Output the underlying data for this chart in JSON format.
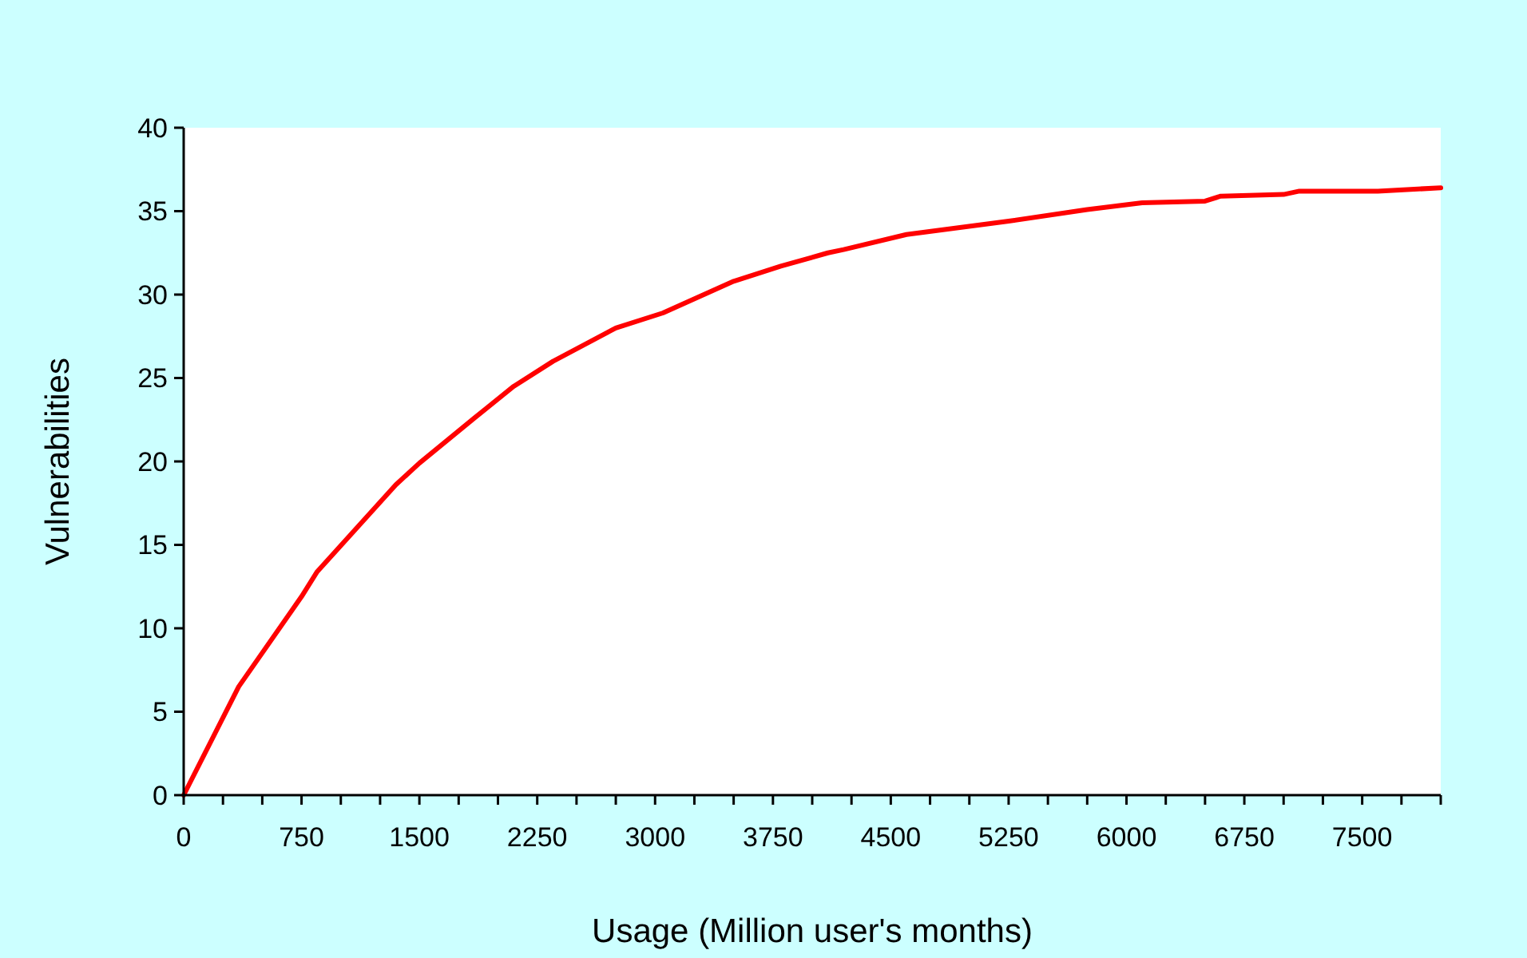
{
  "chart_data": {
    "type": "line",
    "xlabel": "Usage (Million user's months)",
    "ylabel": "Vulnerabilities",
    "x": [
      0,
      350,
      750,
      850,
      1350,
      1500,
      1850,
      2100,
      2350,
      2750,
      3050,
      3500,
      3800,
      4100,
      4200,
      4600,
      5250,
      5750,
      6100,
      6500,
      6600,
      7000,
      7100,
      7600,
      8000
    ],
    "series": [
      {
        "color": "#ff0000",
        "values": [
          0,
          6.5,
          11.9,
          13.4,
          18.6,
          19.9,
          22.6,
          24.5,
          26,
          28,
          28.9,
          30.8,
          31.7,
          32.5,
          32.7,
          33.6,
          34.4,
          35.1,
          35.5,
          35.6,
          35.9,
          36,
          36.2,
          36.2,
          36.4
        ]
      }
    ],
    "xlim": [
      0,
      8000
    ],
    "xticks": [
      0,
      {
        "value": 250,
        "label": null
      },
      {
        "value": 500,
        "label": null
      },
      750,
      {
        "value": 1000,
        "label": null
      },
      {
        "value": 1250,
        "label": null
      },
      1500,
      {
        "value": 1750,
        "label": null
      },
      {
        "value": 2000,
        "label": null
      },
      2250,
      {
        "value": 2500,
        "label": null
      },
      {
        "value": 2750,
        "label": null
      },
      3000,
      {
        "value": 3250,
        "label": null
      },
      {
        "value": 3500,
        "label": null
      },
      3750,
      {
        "value": 4000,
        "label": null
      },
      {
        "value": 4250,
        "label": null
      },
      4500,
      {
        "value": 4750,
        "label": null
      },
      {
        "value": 5000,
        "label": null
      },
      5250,
      {
        "value": 5500,
        "label": null
      },
      {
        "value": 5750,
        "label": null
      },
      6000,
      {
        "value": 6250,
        "label": null
      },
      {
        "value": 6500,
        "label": null
      },
      6750,
      {
        "value": 7000,
        "label": null
      },
      {
        "value": 7250,
        "label": null
      },
      7500,
      {
        "value": 7750,
        "label": null
      },
      {
        "value": 8000,
        "label": null
      }
    ],
    "ylim": [
      0,
      40
    ],
    "yticks": [
      0,
      5,
      10,
      15,
      20,
      25,
      30,
      35,
      40
    ],
    "grid": false,
    "marker": "none",
    "line_style": "solid"
  }
}
